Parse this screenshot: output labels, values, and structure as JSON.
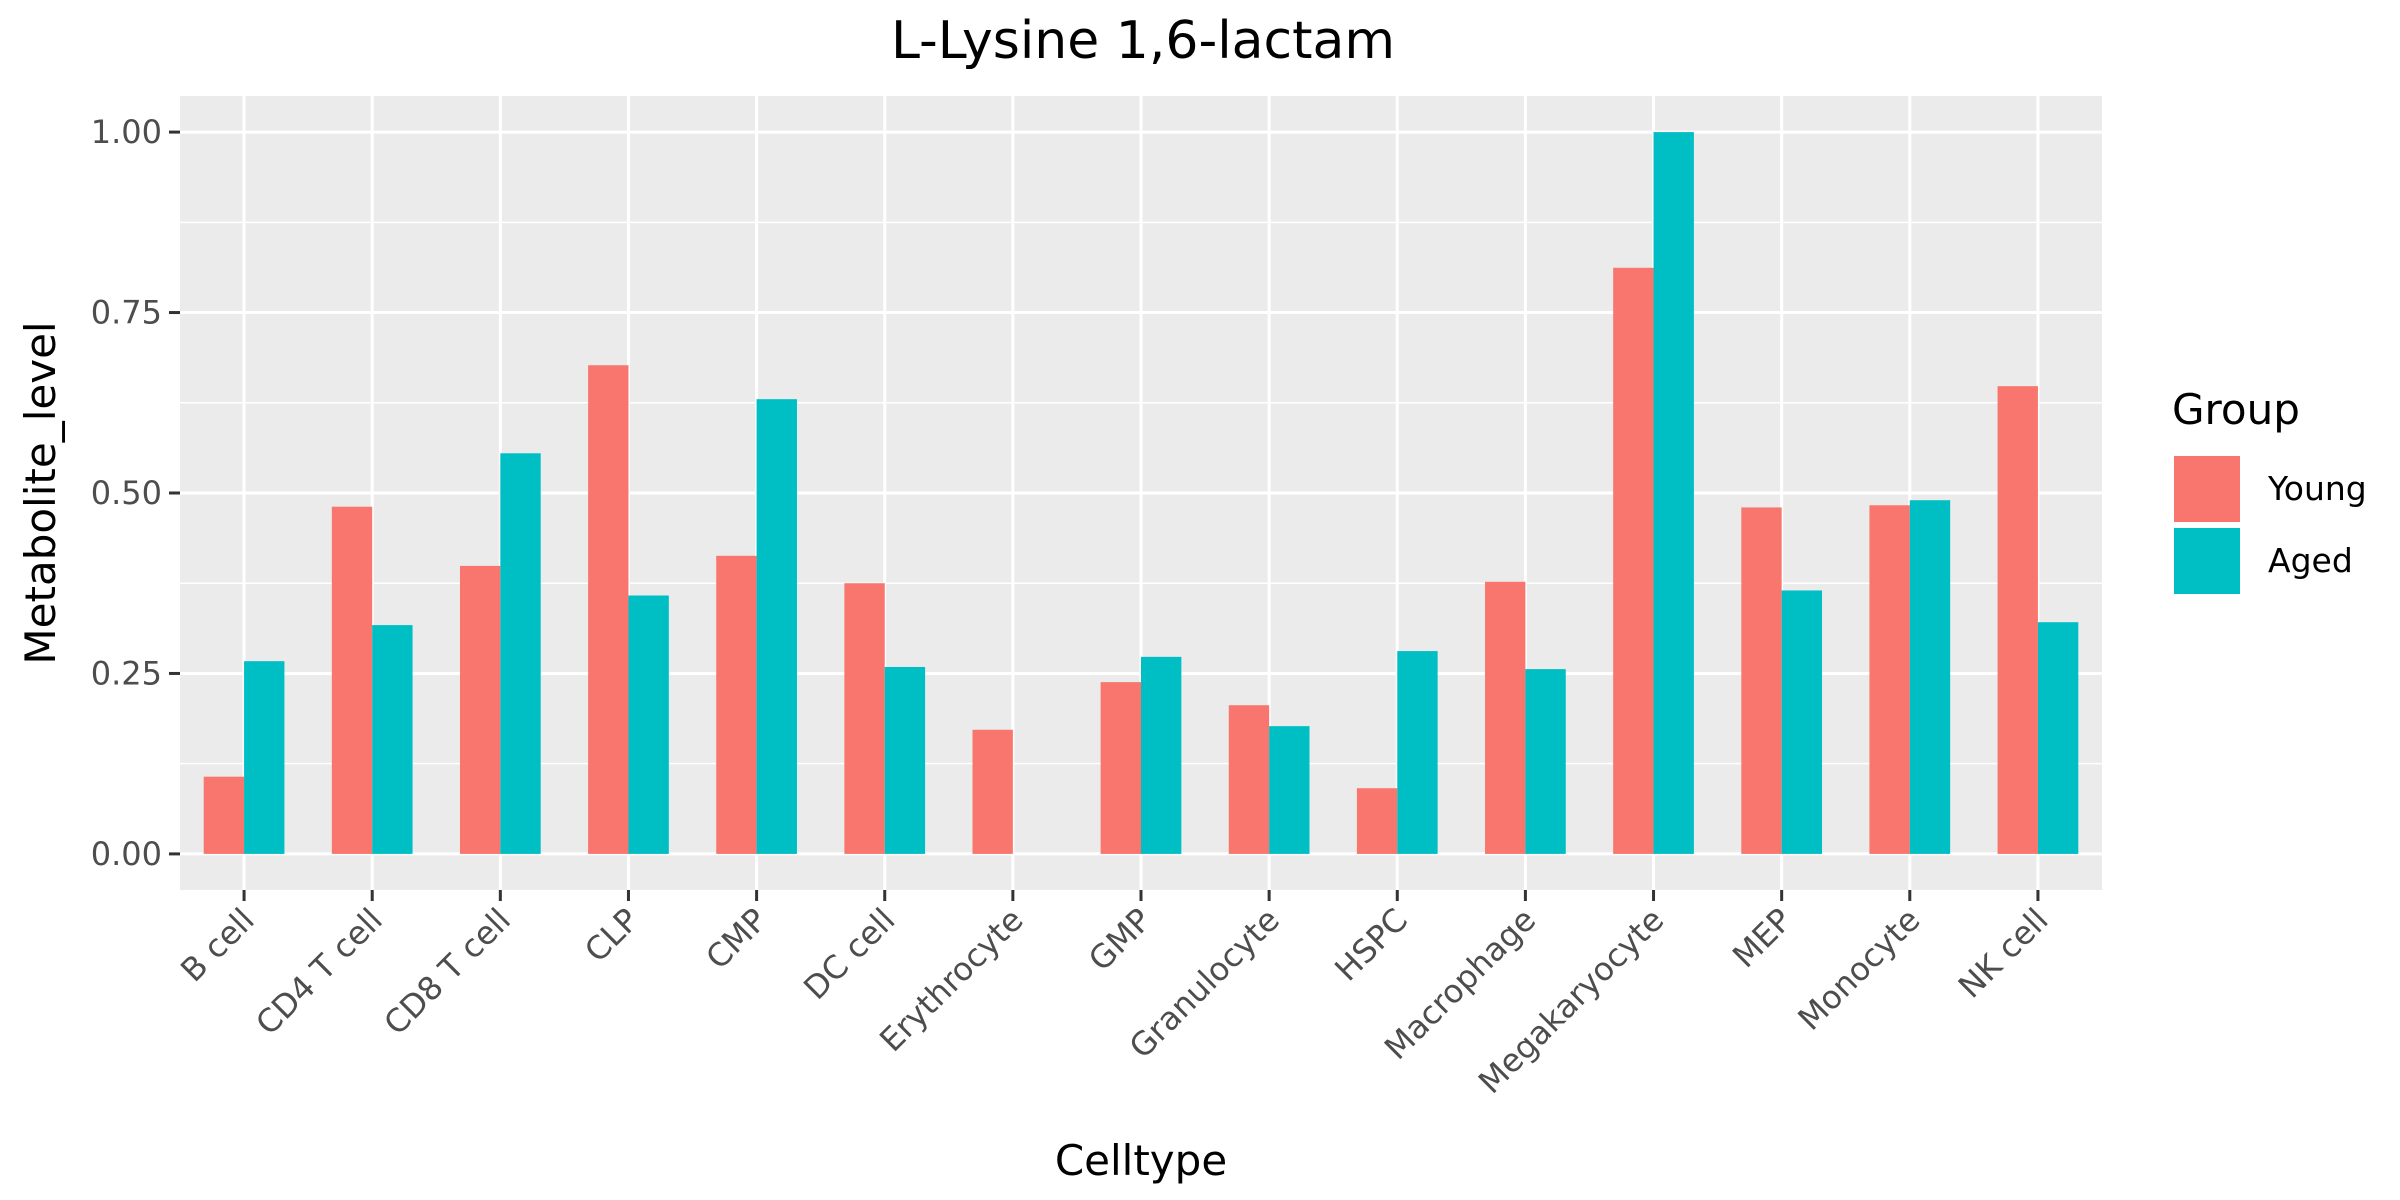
{
  "chart_data": {
    "type": "bar",
    "title": "L-Lysine 1,6-lactam",
    "xlabel": "Celltype",
    "ylabel": "Metabolite_level",
    "categories": [
      "B cell",
      "CD4 T cell",
      "CD8 T cell",
      "CLP",
      "CMP",
      "DC cell",
      "Erythrocyte",
      "GMP",
      "Granulocyte",
      "HSPC",
      "Macrophage",
      "Megakaryocyte",
      "MEP",
      "Monocyte",
      "NK cell"
    ],
    "series": [
      {
        "name": "Young",
        "color": "#F8766D",
        "values": [
          0.107,
          0.481,
          0.399,
          0.677,
          0.413,
          0.375,
          0.172,
          0.238,
          0.206,
          0.091,
          0.377,
          0.812,
          0.48,
          0.483,
          0.648
        ]
      },
      {
        "name": "Aged",
        "color": "#00BFC4",
        "values": [
          0.267,
          0.317,
          0.555,
          0.358,
          0.63,
          0.259,
          0.0,
          0.273,
          0.177,
          0.281,
          0.256,
          1.0,
          0.365,
          0.49,
          0.321
        ]
      }
    ],
    "ylim": [
      -0.05,
      1.05
    ],
    "yticks": [
      "0.00",
      "0.25",
      "0.50",
      "0.75",
      "1.00"
    ],
    "ytick_values": [
      0,
      0.25,
      0.5,
      0.75,
      1.0
    ],
    "grid": true,
    "legend": {
      "title": "Group",
      "position": "right"
    },
    "panel_color": "#EBEBEB"
  }
}
